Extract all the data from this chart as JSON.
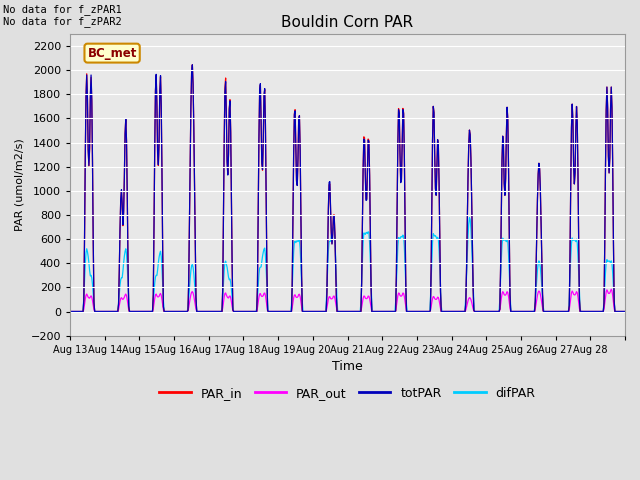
{
  "title": "Bouldin Corn PAR",
  "ylabel": "PAR (umol/m2/s)",
  "xlabel": "Time",
  "annotation_line1": "No data for f_zPAR1",
  "annotation_line2": "No data for f_zPAR2",
  "box_label": "BC_met",
  "ylim": [
    -200,
    2300
  ],
  "yticks": [
    -200,
    0,
    200,
    400,
    600,
    800,
    1000,
    1200,
    1400,
    1600,
    1800,
    2000,
    2200
  ],
  "background_color": "#e0e0e0",
  "plot_bg_color": "#e8e8e8",
  "line_colors": {
    "PAR_in": "#ff0000",
    "PAR_out": "#ff00ff",
    "totPAR": "#0000bb",
    "difPAR": "#00ccff"
  },
  "xtick_labels": [
    "Aug 13",
    "Aug 14",
    "Aug 15",
    "Aug 16",
    "Aug 17",
    "Aug 18",
    "Aug 19",
    "Aug 20",
    "Aug 21",
    "Aug 22",
    "Aug 23",
    "Aug 24",
    "Aug 25",
    "Aug 26",
    "Aug 27",
    "Aug 28"
  ],
  "day_peaks_totPAR": [
    1960,
    1010,
    1970,
    2050,
    1920,
    1910,
    1690,
    1100,
    1460,
    1700,
    1720,
    1510,
    1460,
    1230,
    1720,
    1860
  ],
  "day_peaks2_totPAR": [
    1960,
    1600,
    1960,
    0,
    1760,
    1870,
    1650,
    810,
    1450,
    1700,
    1440,
    0,
    1700,
    0,
    1700,
    1860
  ],
  "day_peaks_PAR_in": [
    1970,
    1000,
    1960,
    2050,
    1950,
    1900,
    1700,
    1080,
    1480,
    1710,
    1720,
    1510,
    1460,
    1230,
    1720,
    1860
  ],
  "day_peaks2_PAR_in": [
    1940,
    1600,
    1950,
    0,
    1770,
    1860,
    1650,
    820,
    1460,
    1710,
    1440,
    0,
    1700,
    0,
    1700,
    1860
  ],
  "day_peaks_difPAR": [
    520,
    280,
    300,
    390,
    420,
    370,
    590,
    590,
    660,
    620,
    650,
    780,
    610,
    420,
    610,
    430
  ],
  "day_peaks2_difPAR": [
    300,
    520,
    500,
    0,
    270,
    530,
    600,
    710,
    670,
    640,
    620,
    0,
    600,
    0,
    600,
    420
  ],
  "day_peaks_PAR_out": [
    145,
    115,
    145,
    165,
    155,
    150,
    140,
    125,
    130,
    155,
    125,
    115,
    165,
    170,
    170,
    180
  ],
  "day_peaks2_PAR_out": [
    130,
    145,
    150,
    0,
    130,
    155,
    145,
    130,
    130,
    155,
    120,
    0,
    165,
    0,
    165,
    185
  ]
}
